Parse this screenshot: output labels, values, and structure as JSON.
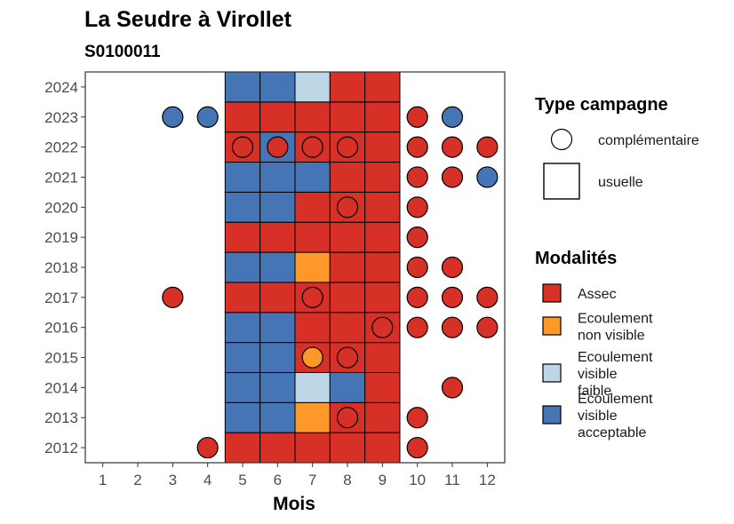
{
  "chart_data": {
    "type": "heatmap",
    "title": "La Seudre à Virollet",
    "subtitle": "S0100011",
    "xlabel": "Mois",
    "ylabel": "",
    "x_ticks": [
      1,
      2,
      3,
      4,
      5,
      6,
      7,
      8,
      9,
      10,
      11,
      12
    ],
    "y_ticks": [
      2012,
      2013,
      2014,
      2015,
      2016,
      2017,
      2018,
      2019,
      2020,
      2021,
      2022,
      2023,
      2024
    ],
    "xlim": [
      0.5,
      12.5
    ],
    "ylim": [
      2011.5,
      2024.5
    ],
    "grid": false,
    "legend_position": "right",
    "shape_legend": {
      "title": "Type campagne",
      "items": [
        {
          "label": "complémentaire",
          "shape": "circle"
        },
        {
          "label": "usuelle",
          "shape": "square"
        }
      ]
    },
    "color_legend": {
      "title": "Modalités",
      "items": [
        {
          "key": "assec",
          "label_lines": [
            "Assec"
          ],
          "color": "#D73027"
        },
        {
          "key": "nonvis",
          "label_lines": [
            "Ecoulement",
            "non visible"
          ],
          "color": "#FE9929"
        },
        {
          "key": "faible",
          "label_lines": [
            "Ecoulement",
            "visible",
            "faible"
          ],
          "color": "#BDD7E7"
        },
        {
          "key": "accept",
          "label_lines": [
            "Ecoulement",
            "visible",
            "acceptable"
          ],
          "color": "#4575B4"
        }
      ]
    },
    "usuelle": [
      {
        "year": 2012,
        "values": [
          "assec",
          "assec",
          "assec",
          "assec",
          "assec"
        ]
      },
      {
        "year": 2013,
        "values": [
          "accept",
          "accept",
          "nonvis",
          "assec",
          "assec"
        ]
      },
      {
        "year": 2014,
        "values": [
          "accept",
          "accept",
          "faible",
          "accept",
          "assec"
        ]
      },
      {
        "year": 2015,
        "values": [
          "accept",
          "accept",
          "assec",
          "assec",
          "assec"
        ]
      },
      {
        "year": 2016,
        "values": [
          "accept",
          "accept",
          "assec",
          "assec",
          "assec"
        ]
      },
      {
        "year": 2017,
        "values": [
          "assec",
          "assec",
          "assec",
          "assec",
          "assec"
        ]
      },
      {
        "year": 2018,
        "values": [
          "accept",
          "accept",
          "nonvis",
          "assec",
          "assec"
        ]
      },
      {
        "year": 2019,
        "values": [
          "assec",
          "assec",
          "assec",
          "assec",
          "assec"
        ]
      },
      {
        "year": 2020,
        "values": [
          "accept",
          "accept",
          "assec",
          "assec",
          "assec"
        ]
      },
      {
        "year": 2021,
        "values": [
          "accept",
          "accept",
          "accept",
          "assec",
          "assec"
        ]
      },
      {
        "year": 2022,
        "values": [
          "assec",
          "accept",
          "assec",
          "assec",
          "assec"
        ]
      },
      {
        "year": 2023,
        "values": [
          "assec",
          "assec",
          "assec",
          "assec",
          "assec"
        ]
      },
      {
        "year": 2024,
        "values": [
          "accept",
          "accept",
          "faible",
          "assec",
          "assec"
        ]
      }
    ],
    "usuelle_months": [
      5,
      6,
      7,
      8,
      9
    ],
    "complementaire": [
      {
        "year": 2012,
        "month": 4,
        "value": "assec"
      },
      {
        "year": 2012,
        "month": 10,
        "value": "assec"
      },
      {
        "year": 2013,
        "month": 8,
        "value": "assec"
      },
      {
        "year": 2013,
        "month": 10,
        "value": "assec"
      },
      {
        "year": 2014,
        "month": 11,
        "value": "assec"
      },
      {
        "year": 2015,
        "month": 7,
        "value": "nonvis"
      },
      {
        "year": 2015,
        "month": 8,
        "value": "assec"
      },
      {
        "year": 2016,
        "month": 9,
        "value": "assec"
      },
      {
        "year": 2016,
        "month": 10,
        "value": "assec"
      },
      {
        "year": 2016,
        "month": 11,
        "value": "assec"
      },
      {
        "year": 2016,
        "month": 12,
        "value": "assec"
      },
      {
        "year": 2017,
        "month": 3,
        "value": "assec"
      },
      {
        "year": 2017,
        "month": 7,
        "value": "assec"
      },
      {
        "year": 2017,
        "month": 10,
        "value": "assec"
      },
      {
        "year": 2017,
        "month": 11,
        "value": "assec"
      },
      {
        "year": 2017,
        "month": 12,
        "value": "assec"
      },
      {
        "year": 2018,
        "month": 10,
        "value": "assec"
      },
      {
        "year": 2018,
        "month": 11,
        "value": "assec"
      },
      {
        "year": 2019,
        "month": 10,
        "value": "assec"
      },
      {
        "year": 2020,
        "month": 8,
        "value": "assec"
      },
      {
        "year": 2020,
        "month": 10,
        "value": "assec"
      },
      {
        "year": 2021,
        "month": 10,
        "value": "assec"
      },
      {
        "year": 2021,
        "month": 11,
        "value": "assec"
      },
      {
        "year": 2021,
        "month": 12,
        "value": "accept"
      },
      {
        "year": 2022,
        "month": 5,
        "value": "assec"
      },
      {
        "year": 2022,
        "month": 6,
        "value": "assec"
      },
      {
        "year": 2022,
        "month": 7,
        "value": "assec"
      },
      {
        "year": 2022,
        "month": 8,
        "value": "assec"
      },
      {
        "year": 2022,
        "month": 10,
        "value": "assec"
      },
      {
        "year": 2022,
        "month": 11,
        "value": "assec"
      },
      {
        "year": 2022,
        "month": 12,
        "value": "assec"
      },
      {
        "year": 2023,
        "month": 3,
        "value": "accept"
      },
      {
        "year": 2023,
        "month": 4,
        "value": "accept"
      },
      {
        "year": 2023,
        "month": 10,
        "value": "assec"
      },
      {
        "year": 2023,
        "month": 11,
        "value": "accept"
      }
    ]
  }
}
